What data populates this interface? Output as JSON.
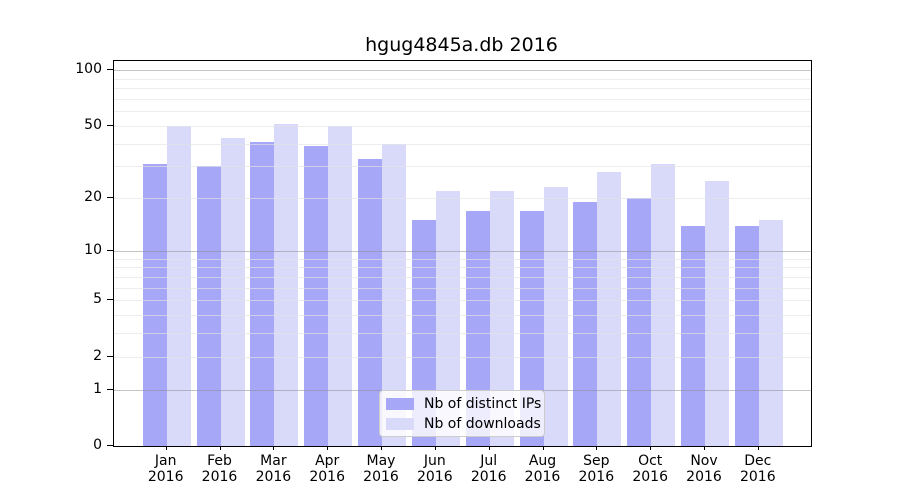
{
  "chart_data": {
    "type": "bar",
    "title": "hgug4845a.db 2016",
    "categories": [
      "Jan 2016",
      "Feb 2016",
      "Mar 2016",
      "Apr 2016",
      "May 2016",
      "Jun 2016",
      "Jul 2016",
      "Aug 2016",
      "Sep 2016",
      "Oct 2016",
      "Nov 2016",
      "Dec 2016"
    ],
    "series": [
      {
        "name": "Nb of distinct IPs",
        "color": "#a7a7f7",
        "values": [
          31,
          30,
          41,
          39,
          33,
          15,
          17,
          17,
          19,
          20,
          14,
          14
        ]
      },
      {
        "name": "Nb of downloads",
        "color": "#d9d9f9",
        "values": [
          50,
          43,
          51,
          50,
          40,
          22,
          22,
          23,
          28,
          31,
          25,
          15
        ]
      }
    ],
    "xlabel": "",
    "ylabel": "",
    "yscale": "log10(value+1)",
    "ylim": [
      0,
      112
    ],
    "yticks": [
      0,
      1,
      2,
      5,
      10,
      20,
      50,
      100
    ],
    "grid": true,
    "grid_major": [
      1,
      10,
      100
    ],
    "grid_minor": [
      2,
      3,
      4,
      5,
      6,
      7,
      8,
      9,
      20,
      30,
      40,
      50,
      60,
      70,
      80,
      90
    ],
    "legend": {
      "position": "lower center",
      "entries": [
        "Nb of distinct IPs",
        "Nb of downloads"
      ]
    },
    "colors": {
      "distinct_ips_bar": "#a7a7f7",
      "downloads_bar": "#d9d9f9",
      "axis": "#000000",
      "grid_major_line": "#b3b3b3",
      "grid_minor_line": "#e6e6e6",
      "legend_border": "#cccccc"
    }
  }
}
